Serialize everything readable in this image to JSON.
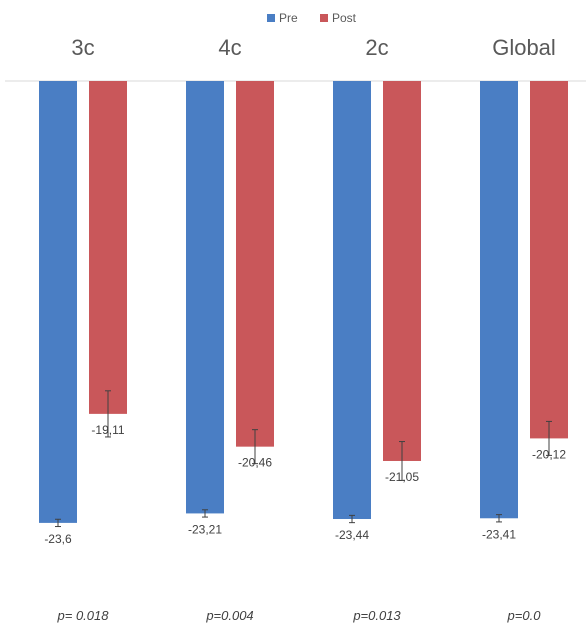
{
  "chart_data": {
    "type": "bar",
    "categories": [
      "3c",
      "4c",
      "2c",
      "Global"
    ],
    "series": [
      {
        "name": "Pre",
        "color": "#4a7ec4",
        "values": [
          -23.6,
          -23.21,
          -23.44,
          -23.41
        ],
        "labels": [
          "-23,6",
          "-23,21",
          "-23,44",
          "-23,41"
        ],
        "error_half": [
          0.15,
          0.15,
          0.15,
          0.15
        ]
      },
      {
        "name": "Post",
        "color": "#c9575a",
        "values": [
          -19.11,
          -20.46,
          -21.05,
          -20.12
        ],
        "labels": [
          "-19,11",
          "-20,46",
          "-21,05",
          "-20,12"
        ],
        "error_half": [
          0.95,
          0.7,
          0.8,
          0.7
        ]
      }
    ],
    "y_range": [
      -24.6,
      -5.4
    ],
    "p_values": [
      "p= 0.018",
      "p=0.004",
      "p=0.013",
      "p=0.0"
    ],
    "legend_position": "top-center",
    "grid": false
  }
}
